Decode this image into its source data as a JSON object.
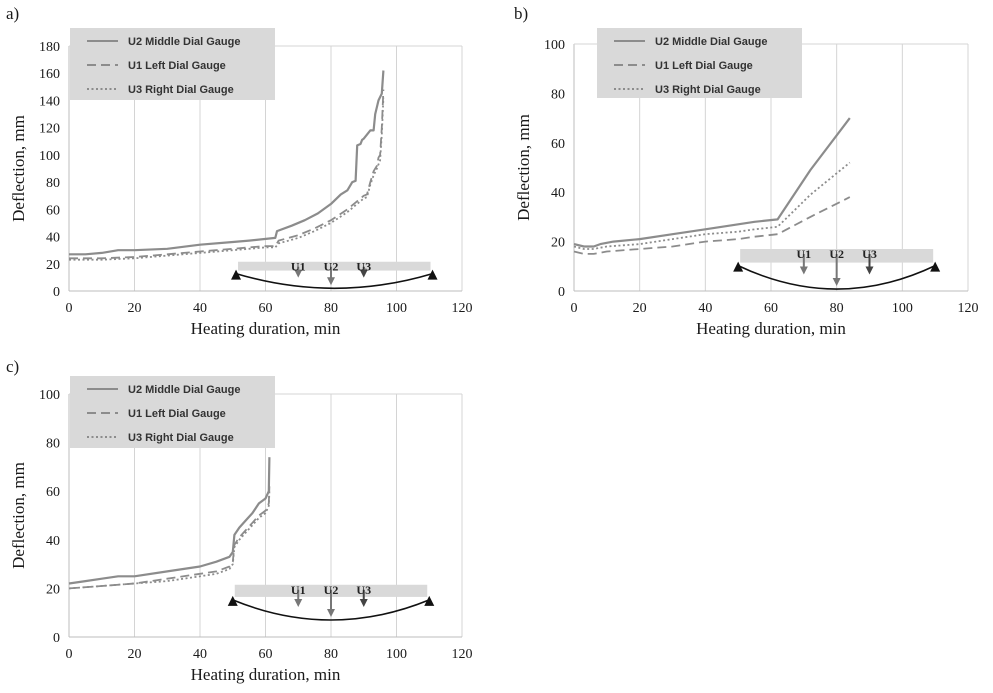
{
  "chart_data": [
    {
      "type": "line",
      "panel_label": "a)",
      "xlabel": "Heating duration, min",
      "ylabel": "Deflection, mm",
      "xlim": [
        0,
        120
      ],
      "ylim": [
        0,
        180
      ],
      "x_ticks": [
        0,
        20,
        40,
        60,
        80,
        100,
        120
      ],
      "y_ticks": [
        0,
        20,
        40,
        60,
        80,
        100,
        120,
        140,
        160,
        180
      ],
      "grid": "vertical",
      "legend_position": "top-left",
      "series": [
        {
          "name": "U2 Middle Dial Gauge",
          "style": "solid",
          "color": "#8c8c8c",
          "points": [
            [
              0,
              27
            ],
            [
              5,
              27
            ],
            [
              10,
              28
            ],
            [
              15,
              30
            ],
            [
              20,
              30
            ],
            [
              30,
              31
            ],
            [
              40,
              34
            ],
            [
              50,
              36
            ],
            [
              55,
              37
            ],
            [
              63,
              39
            ],
            [
              63.5,
              44
            ],
            [
              68,
              48
            ],
            [
              72,
              52
            ],
            [
              76,
              57
            ],
            [
              80,
              64
            ],
            [
              83,
              71
            ],
            [
              85,
              74
            ],
            [
              86.5,
              80
            ],
            [
              87.5,
              81
            ],
            [
              88,
              107
            ],
            [
              89,
              108
            ],
            [
              89.5,
              111
            ],
            [
              90,
              112
            ],
            [
              92,
              118
            ],
            [
              93,
              118
            ],
            [
              93.5,
              130
            ],
            [
              94.5,
              140
            ],
            [
              95.5,
              145
            ],
            [
              96,
              162
            ]
          ]
        },
        {
          "name": "U1 Left Dial Gauge",
          "style": "dashed",
          "color": "#8c8c8c",
          "points": [
            [
              0,
              24
            ],
            [
              10,
              24
            ],
            [
              20,
              25
            ],
            [
              30,
              27
            ],
            [
              40,
              29
            ],
            [
              50,
              31
            ],
            [
              55,
              32
            ],
            [
              60,
              33
            ],
            [
              63,
              33
            ],
            [
              64,
              37
            ],
            [
              70,
              41
            ],
            [
              75,
              46
            ],
            [
              80,
              52
            ],
            [
              85,
              60
            ],
            [
              88,
              66
            ],
            [
              90,
              70
            ],
            [
              91,
              71
            ],
            [
              92,
              80
            ],
            [
              93,
              88
            ],
            [
              94,
              92
            ],
            [
              94.5,
              98
            ],
            [
              95,
              100
            ],
            [
              95.5,
              120
            ],
            [
              96,
              148
            ]
          ]
        },
        {
          "name": "U3 Right Dial Gauge",
          "style": "dotted",
          "color": "#8c8c8c",
          "points": [
            [
              0,
              23
            ],
            [
              10,
              23
            ],
            [
              20,
              24
            ],
            [
              30,
              26
            ],
            [
              40,
              28
            ],
            [
              50,
              30
            ],
            [
              55,
              31
            ],
            [
              60,
              32
            ],
            [
              63,
              32
            ],
            [
              64,
              35
            ],
            [
              70,
              39
            ],
            [
              75,
              44
            ],
            [
              80,
              50
            ],
            [
              85,
              58
            ],
            [
              88,
              64
            ],
            [
              90,
              68
            ],
            [
              91,
              69
            ],
            [
              92,
              78
            ],
            [
              93,
              85
            ],
            [
              94,
              90
            ],
            [
              95,
              96
            ],
            [
              95.5,
              115
            ],
            [
              96,
              142
            ]
          ]
        }
      ],
      "beam_labels": [
        "U1",
        "U2",
        "U3"
      ]
    },
    {
      "type": "line",
      "panel_label": "b)",
      "xlabel": "Heating duration, min",
      "ylabel": "Deflection, mm",
      "xlim": [
        0,
        120
      ],
      "ylim": [
        0,
        100
      ],
      "x_ticks": [
        0,
        20,
        40,
        60,
        80,
        100,
        120
      ],
      "y_ticks": [
        0,
        20,
        40,
        60,
        80,
        100
      ],
      "grid": "vertical",
      "legend_position": "top-right",
      "series": [
        {
          "name": "U2 Middle Dial Gauge",
          "style": "solid",
          "color": "#8c8c8c",
          "points": [
            [
              0,
              19
            ],
            [
              3,
              18
            ],
            [
              6,
              18
            ],
            [
              8,
              19
            ],
            [
              12,
              20
            ],
            [
              20,
              21
            ],
            [
              30,
              23
            ],
            [
              40,
              25
            ],
            [
              50,
              27
            ],
            [
              55,
              28
            ],
            [
              62,
              29
            ],
            [
              72,
              49
            ],
            [
              84,
              70
            ]
          ]
        },
        {
          "name": "U1 Left Dial Gauge",
          "style": "dashed",
          "color": "#8c8c8c",
          "points": [
            [
              0,
              16
            ],
            [
              3,
              15
            ],
            [
              6,
              15
            ],
            [
              10,
              16
            ],
            [
              20,
              17
            ],
            [
              30,
              18
            ],
            [
              40,
              20
            ],
            [
              50,
              21
            ],
            [
              55,
              22
            ],
            [
              62,
              23
            ],
            [
              72,
              30
            ],
            [
              84,
              38
            ]
          ]
        },
        {
          "name": "U3 Right Dial Gauge",
          "style": "dotted",
          "color": "#8c8c8c",
          "points": [
            [
              0,
              18
            ],
            [
              3,
              17
            ],
            [
              6,
              17
            ],
            [
              10,
              18
            ],
            [
              20,
              19
            ],
            [
              30,
              21
            ],
            [
              40,
              23
            ],
            [
              50,
              24
            ],
            [
              55,
              25
            ],
            [
              62,
              26
            ],
            [
              72,
              39
            ],
            [
              84,
              52
            ]
          ]
        }
      ],
      "beam_labels": [
        "U1",
        "U2",
        "U3"
      ]
    },
    {
      "type": "line",
      "panel_label": "c)",
      "xlabel": "Heating duration, min",
      "ylabel": "Deflection, mm",
      "xlim": [
        0,
        120
      ],
      "ylim": [
        0,
        100
      ],
      "x_ticks": [
        0,
        20,
        40,
        60,
        80,
        100,
        120
      ],
      "y_ticks": [
        0,
        20,
        40,
        60,
        80,
        100
      ],
      "grid": "vertical",
      "legend_position": "top-left",
      "series": [
        {
          "name": "U2 Middle Dial Gauge",
          "style": "solid",
          "color": "#8c8c8c",
          "points": [
            [
              0,
              22
            ],
            [
              5,
              23
            ],
            [
              10,
              24
            ],
            [
              15,
              25
            ],
            [
              20,
              25
            ],
            [
              30,
              27
            ],
            [
              40,
              29
            ],
            [
              45,
              31
            ],
            [
              49,
              33
            ],
            [
              50,
              35
            ],
            [
              50.5,
              42
            ],
            [
              52,
              45
            ],
            [
              54,
              48
            ],
            [
              56,
              51
            ],
            [
              58,
              55
            ],
            [
              60,
              57
            ],
            [
              61,
              60
            ],
            [
              61.2,
              74
            ]
          ]
        },
        {
          "name": "U1 Left Dial Gauge",
          "style": "dashed",
          "color": "#8c8c8c",
          "points": [
            [
              0,
              20
            ],
            [
              10,
              21
            ],
            [
              20,
              22
            ],
            [
              30,
              24
            ],
            [
              40,
              26
            ],
            [
              45,
              27
            ],
            [
              49,
              29
            ],
            [
              50,
              31
            ],
            [
              50.5,
              38
            ],
            [
              52,
              41
            ],
            [
              54,
              44
            ],
            [
              56,
              47
            ],
            [
              58,
              50
            ],
            [
              60,
              52
            ],
            [
              61,
              55
            ],
            [
              61.2,
              62
            ]
          ]
        },
        {
          "name": "U3 Right Dial Gauge",
          "style": "dotted",
          "color": "#8c8c8c",
          "points": [
            [
              0,
              20
            ],
            [
              10,
              21
            ],
            [
              20,
              22
            ],
            [
              30,
              23
            ],
            [
              40,
              25
            ],
            [
              45,
              26
            ],
            [
              49,
              28
            ],
            [
              50,
              30
            ],
            [
              50.5,
              37
            ],
            [
              52,
              40
            ],
            [
              54,
              43
            ],
            [
              56,
              46
            ],
            [
              58,
              49
            ],
            [
              60,
              51
            ],
            [
              61,
              54
            ],
            [
              61.2,
              60
            ]
          ]
        }
      ],
      "beam_labels": [
        "U1",
        "U2",
        "U3"
      ]
    }
  ]
}
